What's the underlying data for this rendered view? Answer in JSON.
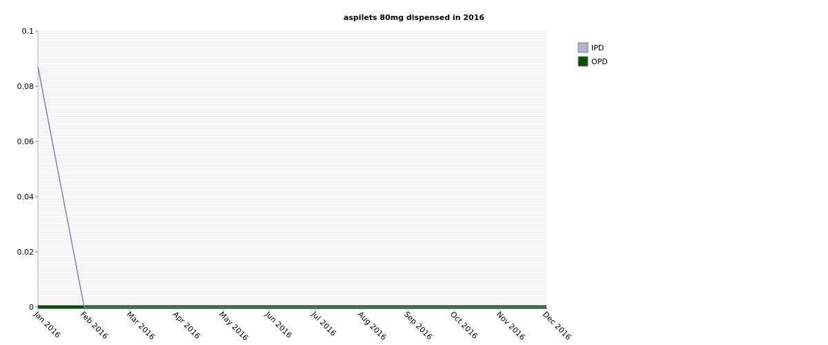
{
  "chart_data": {
    "type": "line",
    "title": "aspilets 80mg dispensed in 2016",
    "xlabel": "",
    "ylabel": "",
    "categories": [
      "Jan 2016",
      "Feb 2016",
      "Mar 2016",
      "Apr 2016",
      "May 2016",
      "Jun 2016",
      "Jul 2016",
      "Aug 2016",
      "Sep 2016",
      "Oct 2016",
      "Nov 2016",
      "Dec 2016"
    ],
    "y_ticks": [
      "0",
      "0.02",
      "0.04",
      "0.06",
      "0.08",
      "0.1"
    ],
    "ylim": [
      0,
      0.1
    ],
    "grid": "horizontal",
    "legend_position": "right",
    "series": [
      {
        "name": "IPD",
        "color": "#b3b3d9",
        "line_color": "#7f7fb2",
        "values": [
          0.087,
          0,
          0,
          0,
          0,
          0,
          0,
          0,
          0,
          0,
          0,
          0
        ]
      },
      {
        "name": "OPD",
        "color": "#0a4d0a",
        "line_color": "#0a4d0a",
        "values": [
          0,
          0,
          0,
          0,
          0,
          0,
          0,
          0,
          0,
          0,
          0,
          0
        ]
      }
    ]
  }
}
